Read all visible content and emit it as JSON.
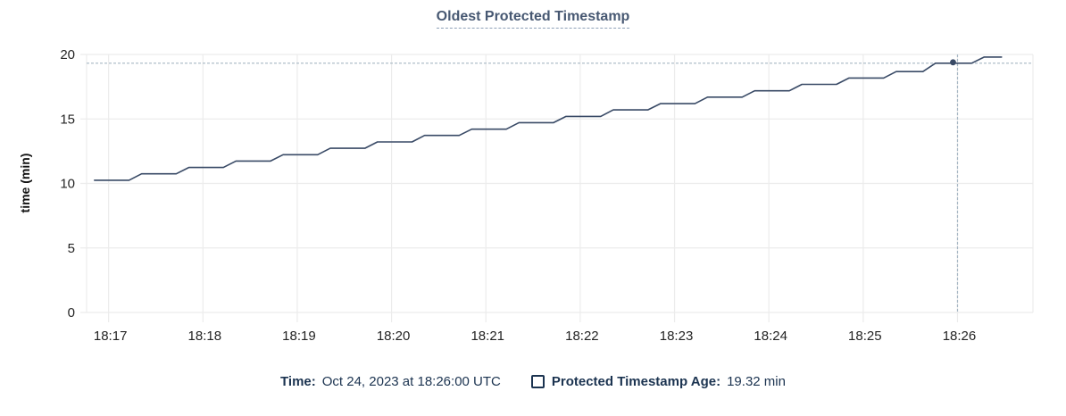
{
  "title": {
    "text": "Oldest Protected Timestamp"
  },
  "chart_data": {
    "type": "line",
    "title": "Oldest Protected Timestamp",
    "xlabel": "",
    "ylabel": "time (min)",
    "ylim": [
      0,
      20
    ],
    "yticks": [
      0,
      5,
      10,
      15,
      20
    ],
    "x_tick_labels": [
      "18:17",
      "18:18",
      "18:19",
      "18:20",
      "18:21",
      "18:22",
      "18:23",
      "18:24",
      "18:25",
      "18:26"
    ],
    "x_tick_seconds": [
      0,
      60,
      120,
      180,
      240,
      300,
      360,
      420,
      480,
      540
    ],
    "xlim_seconds": [
      -14,
      588
    ],
    "grid": true,
    "legend_position": "bottom",
    "series": [
      {
        "name": "Protected Timestamp Age",
        "unit": "min",
        "points": [
          [
            -9,
            10.25
          ],
          [
            13,
            10.25
          ],
          [
            21,
            10.75
          ],
          [
            43,
            10.75
          ],
          [
            51,
            11.24
          ],
          [
            73,
            11.24
          ],
          [
            81,
            11.74
          ],
          [
            103,
            11.74
          ],
          [
            111,
            12.23
          ],
          [
            133,
            12.23
          ],
          [
            141,
            12.73
          ],
          [
            163,
            12.73
          ],
          [
            171,
            13.22
          ],
          [
            193,
            13.22
          ],
          [
            201,
            13.72
          ],
          [
            223,
            13.72
          ],
          [
            231,
            14.21
          ],
          [
            253,
            14.21
          ],
          [
            261,
            14.71
          ],
          [
            283,
            14.71
          ],
          [
            291,
            15.2
          ],
          [
            313,
            15.2
          ],
          [
            321,
            15.7
          ],
          [
            343,
            15.7
          ],
          [
            351,
            16.19
          ],
          [
            373,
            16.19
          ],
          [
            381,
            16.69
          ],
          [
            403,
            16.69
          ],
          [
            411,
            17.18
          ],
          [
            433,
            17.18
          ],
          [
            441,
            17.68
          ],
          [
            463,
            17.68
          ],
          [
            471,
            18.17
          ],
          [
            493,
            18.17
          ],
          [
            501,
            18.67
          ],
          [
            518,
            18.67
          ],
          [
            526,
            19.32
          ],
          [
            549,
            19.32
          ],
          [
            557,
            19.8
          ],
          [
            568,
            19.8
          ]
        ]
      }
    ],
    "hover": {
      "x_seconds": 540,
      "x_label": "18:26",
      "value": 19.32
    }
  },
  "legend": {
    "time_label": "Time:",
    "time_value": "Oct 24, 2023 at 18:26:00 UTC",
    "series_label": "Protected Timestamp Age:",
    "series_value": "19.32 min"
  },
  "colors": {
    "line": "#394a66",
    "dot": "#394a66",
    "grid": "#ececec",
    "crosshair": "#a6b6c4",
    "axis_text": "#242424",
    "title": "#475872",
    "title_underline": "#8ea1b8",
    "legend_text": "#1b3350"
  }
}
